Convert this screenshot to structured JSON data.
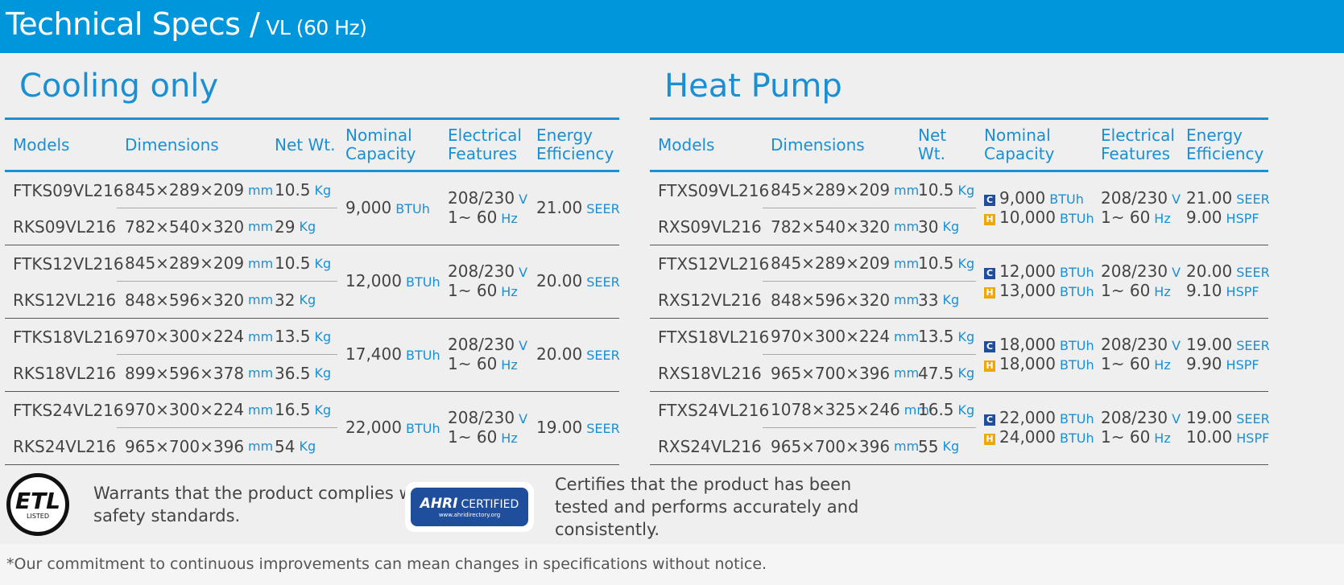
{
  "header": {
    "title": "Technical Specs /",
    "subtitle": "VL (60 Hz)"
  },
  "sections": [
    {
      "title": "Cooling only",
      "columns": [
        "Models",
        "Dimensions",
        "Net Wt.",
        "Nominal Capacity",
        "Electrical Features",
        "Energy Efficiency"
      ],
      "rows": [
        {
          "indoor": {
            "model": "FTKS09VL216",
            "dimensions": "845×289×209",
            "dim_unit": "mm",
            "weight": "10.5",
            "weight_unit": "Kg"
          },
          "outdoor": {
            "model": "RKS09VL216",
            "dimensions": "782×540×320",
            "dim_unit": "mm",
            "weight": "29",
            "weight_unit": "Kg"
          },
          "capacity": [
            {
              "value": "9,000",
              "unit": "BTUh"
            }
          ],
          "electrical": [
            {
              "value": "208/230",
              "unit": "V"
            },
            {
              "value": "1~ 60",
              "unit": "Hz"
            }
          ],
          "efficiency": [
            {
              "value": "21.00",
              "unit": "SEER"
            }
          ]
        },
        {
          "indoor": {
            "model": "FTKS12VL216",
            "dimensions": "845×289×209",
            "dim_unit": "mm",
            "weight": "10.5",
            "weight_unit": "Kg"
          },
          "outdoor": {
            "model": "RKS12VL216",
            "dimensions": "848×596×320",
            "dim_unit": "mm",
            "weight": "32",
            "weight_unit": "Kg"
          },
          "capacity": [
            {
              "value": "12,000",
              "unit": "BTUh"
            }
          ],
          "electrical": [
            {
              "value": "208/230",
              "unit": "V"
            },
            {
              "value": "1~ 60",
              "unit": "Hz"
            }
          ],
          "efficiency": [
            {
              "value": "20.00",
              "unit": "SEER"
            }
          ]
        },
        {
          "indoor": {
            "model": "FTKS18VL216",
            "dimensions": "970×300×224",
            "dim_unit": "mm",
            "weight": "13.5",
            "weight_unit": "Kg"
          },
          "outdoor": {
            "model": "RKS18VL216",
            "dimensions": "899×596×378",
            "dim_unit": "mm",
            "weight": "36.5",
            "weight_unit": "Kg"
          },
          "capacity": [
            {
              "value": "17,400",
              "unit": "BTUh"
            }
          ],
          "electrical": [
            {
              "value": "208/230",
              "unit": "V"
            },
            {
              "value": "1~ 60",
              "unit": "Hz"
            }
          ],
          "efficiency": [
            {
              "value": "20.00",
              "unit": "SEER"
            }
          ]
        },
        {
          "indoor": {
            "model": "FTKS24VL216",
            "dimensions": "970×300×224",
            "dim_unit": "mm",
            "weight": "16.5",
            "weight_unit": "Kg"
          },
          "outdoor": {
            "model": "RKS24VL216",
            "dimensions": "965×700×396",
            "dim_unit": "mm",
            "weight": "54",
            "weight_unit": "Kg"
          },
          "capacity": [
            {
              "value": "22,000",
              "unit": "BTUh"
            }
          ],
          "electrical": [
            {
              "value": "208/230",
              "unit": "V"
            },
            {
              "value": "1~ 60",
              "unit": "Hz"
            }
          ],
          "efficiency": [
            {
              "value": "19.00",
              "unit": "SEER"
            }
          ]
        }
      ]
    },
    {
      "title": "Heat Pump",
      "columns": [
        "Models",
        "Dimensions",
        "Net Wt.",
        "Nominal Capacity",
        "Electrical Features",
        "Energy Efficiency"
      ],
      "rows": [
        {
          "indoor": {
            "model": "FTXS09VL216",
            "dimensions": "845×289×209",
            "dim_unit": "mm",
            "weight": "10.5",
            "weight_unit": "Kg"
          },
          "outdoor": {
            "model": "RXS09VL216",
            "dimensions": "782×540×320",
            "dim_unit": "mm",
            "weight": "30",
            "weight_unit": "Kg"
          },
          "capacity": [
            {
              "badge": "C",
              "value": "9,000",
              "unit": "BTUh"
            },
            {
              "badge": "H",
              "value": "10,000",
              "unit": "BTUh"
            }
          ],
          "electrical": [
            {
              "value": "208/230",
              "unit": "V"
            },
            {
              "value": "1~ 60",
              "unit": "Hz"
            }
          ],
          "efficiency": [
            {
              "value": "21.00",
              "unit": "SEER"
            },
            {
              "value": "9.00",
              "unit": "HSPF"
            }
          ]
        },
        {
          "indoor": {
            "model": "FTXS12VL216",
            "dimensions": "845×289×209",
            "dim_unit": "mm",
            "weight": "10.5",
            "weight_unit": "Kg"
          },
          "outdoor": {
            "model": "RXS12VL216",
            "dimensions": "848×596×320",
            "dim_unit": "mm",
            "weight": "33",
            "weight_unit": "Kg"
          },
          "capacity": [
            {
              "badge": "C",
              "value": "12,000",
              "unit": "BTUh"
            },
            {
              "badge": "H",
              "value": "13,000",
              "unit": "BTUh"
            }
          ],
          "electrical": [
            {
              "value": "208/230",
              "unit": "V"
            },
            {
              "value": "1~ 60",
              "unit": "Hz"
            }
          ],
          "efficiency": [
            {
              "value": "20.00",
              "unit": "SEER"
            },
            {
              "value": "9.10",
              "unit": "HSPF"
            }
          ]
        },
        {
          "indoor": {
            "model": "FTXS18VL216",
            "dimensions": "970×300×224",
            "dim_unit": "mm",
            "weight": "13.5",
            "weight_unit": "Kg"
          },
          "outdoor": {
            "model": "RXS18VL216",
            "dimensions": "965×700×396",
            "dim_unit": "mm",
            "weight": "47.5",
            "weight_unit": "Kg"
          },
          "capacity": [
            {
              "badge": "C",
              "value": "18,000",
              "unit": "BTUh"
            },
            {
              "badge": "H",
              "value": "18,000",
              "unit": "BTUh"
            }
          ],
          "electrical": [
            {
              "value": "208/230",
              "unit": "V"
            },
            {
              "value": "1~ 60",
              "unit": "Hz"
            }
          ],
          "efficiency": [
            {
              "value": "19.00",
              "unit": "SEER"
            },
            {
              "value": "9.90",
              "unit": "HSPF"
            }
          ]
        },
        {
          "indoor": {
            "model": "FTXS24VL216",
            "dimensions": "1078×325×246",
            "dim_unit": "mm",
            "weight": "16.5",
            "weight_unit": "Kg"
          },
          "outdoor": {
            "model": "RXS24VL216",
            "dimensions": "965×700×396",
            "dim_unit": "mm",
            "weight": "55",
            "weight_unit": "Kg"
          },
          "capacity": [
            {
              "badge": "C",
              "value": "22,000",
              "unit": "BTUh"
            },
            {
              "badge": "H",
              "value": "24,000",
              "unit": "BTUh"
            }
          ],
          "electrical": [
            {
              "value": "208/230",
              "unit": "V"
            },
            {
              "value": "1~ 60",
              "unit": "Hz"
            }
          ],
          "efficiency": [
            {
              "value": "19.00",
              "unit": "SEER"
            },
            {
              "value": "10.00",
              "unit": "HSPF"
            }
          ]
        }
      ]
    }
  ],
  "certifications": [
    {
      "logo": "ETL",
      "logo_sub": "LISTED",
      "text": "Warrants that the product complies with safety standards."
    },
    {
      "logo": "AHRI",
      "logo_sub": "CERTIFIED",
      "logo_url": "www.ahridirectory.org",
      "text": "Certifies that the product has been tested and performs accurately and consistently."
    }
  ],
  "footnote": "*Our commitment to continuous improvements can mean changes in specifications without notice."
}
